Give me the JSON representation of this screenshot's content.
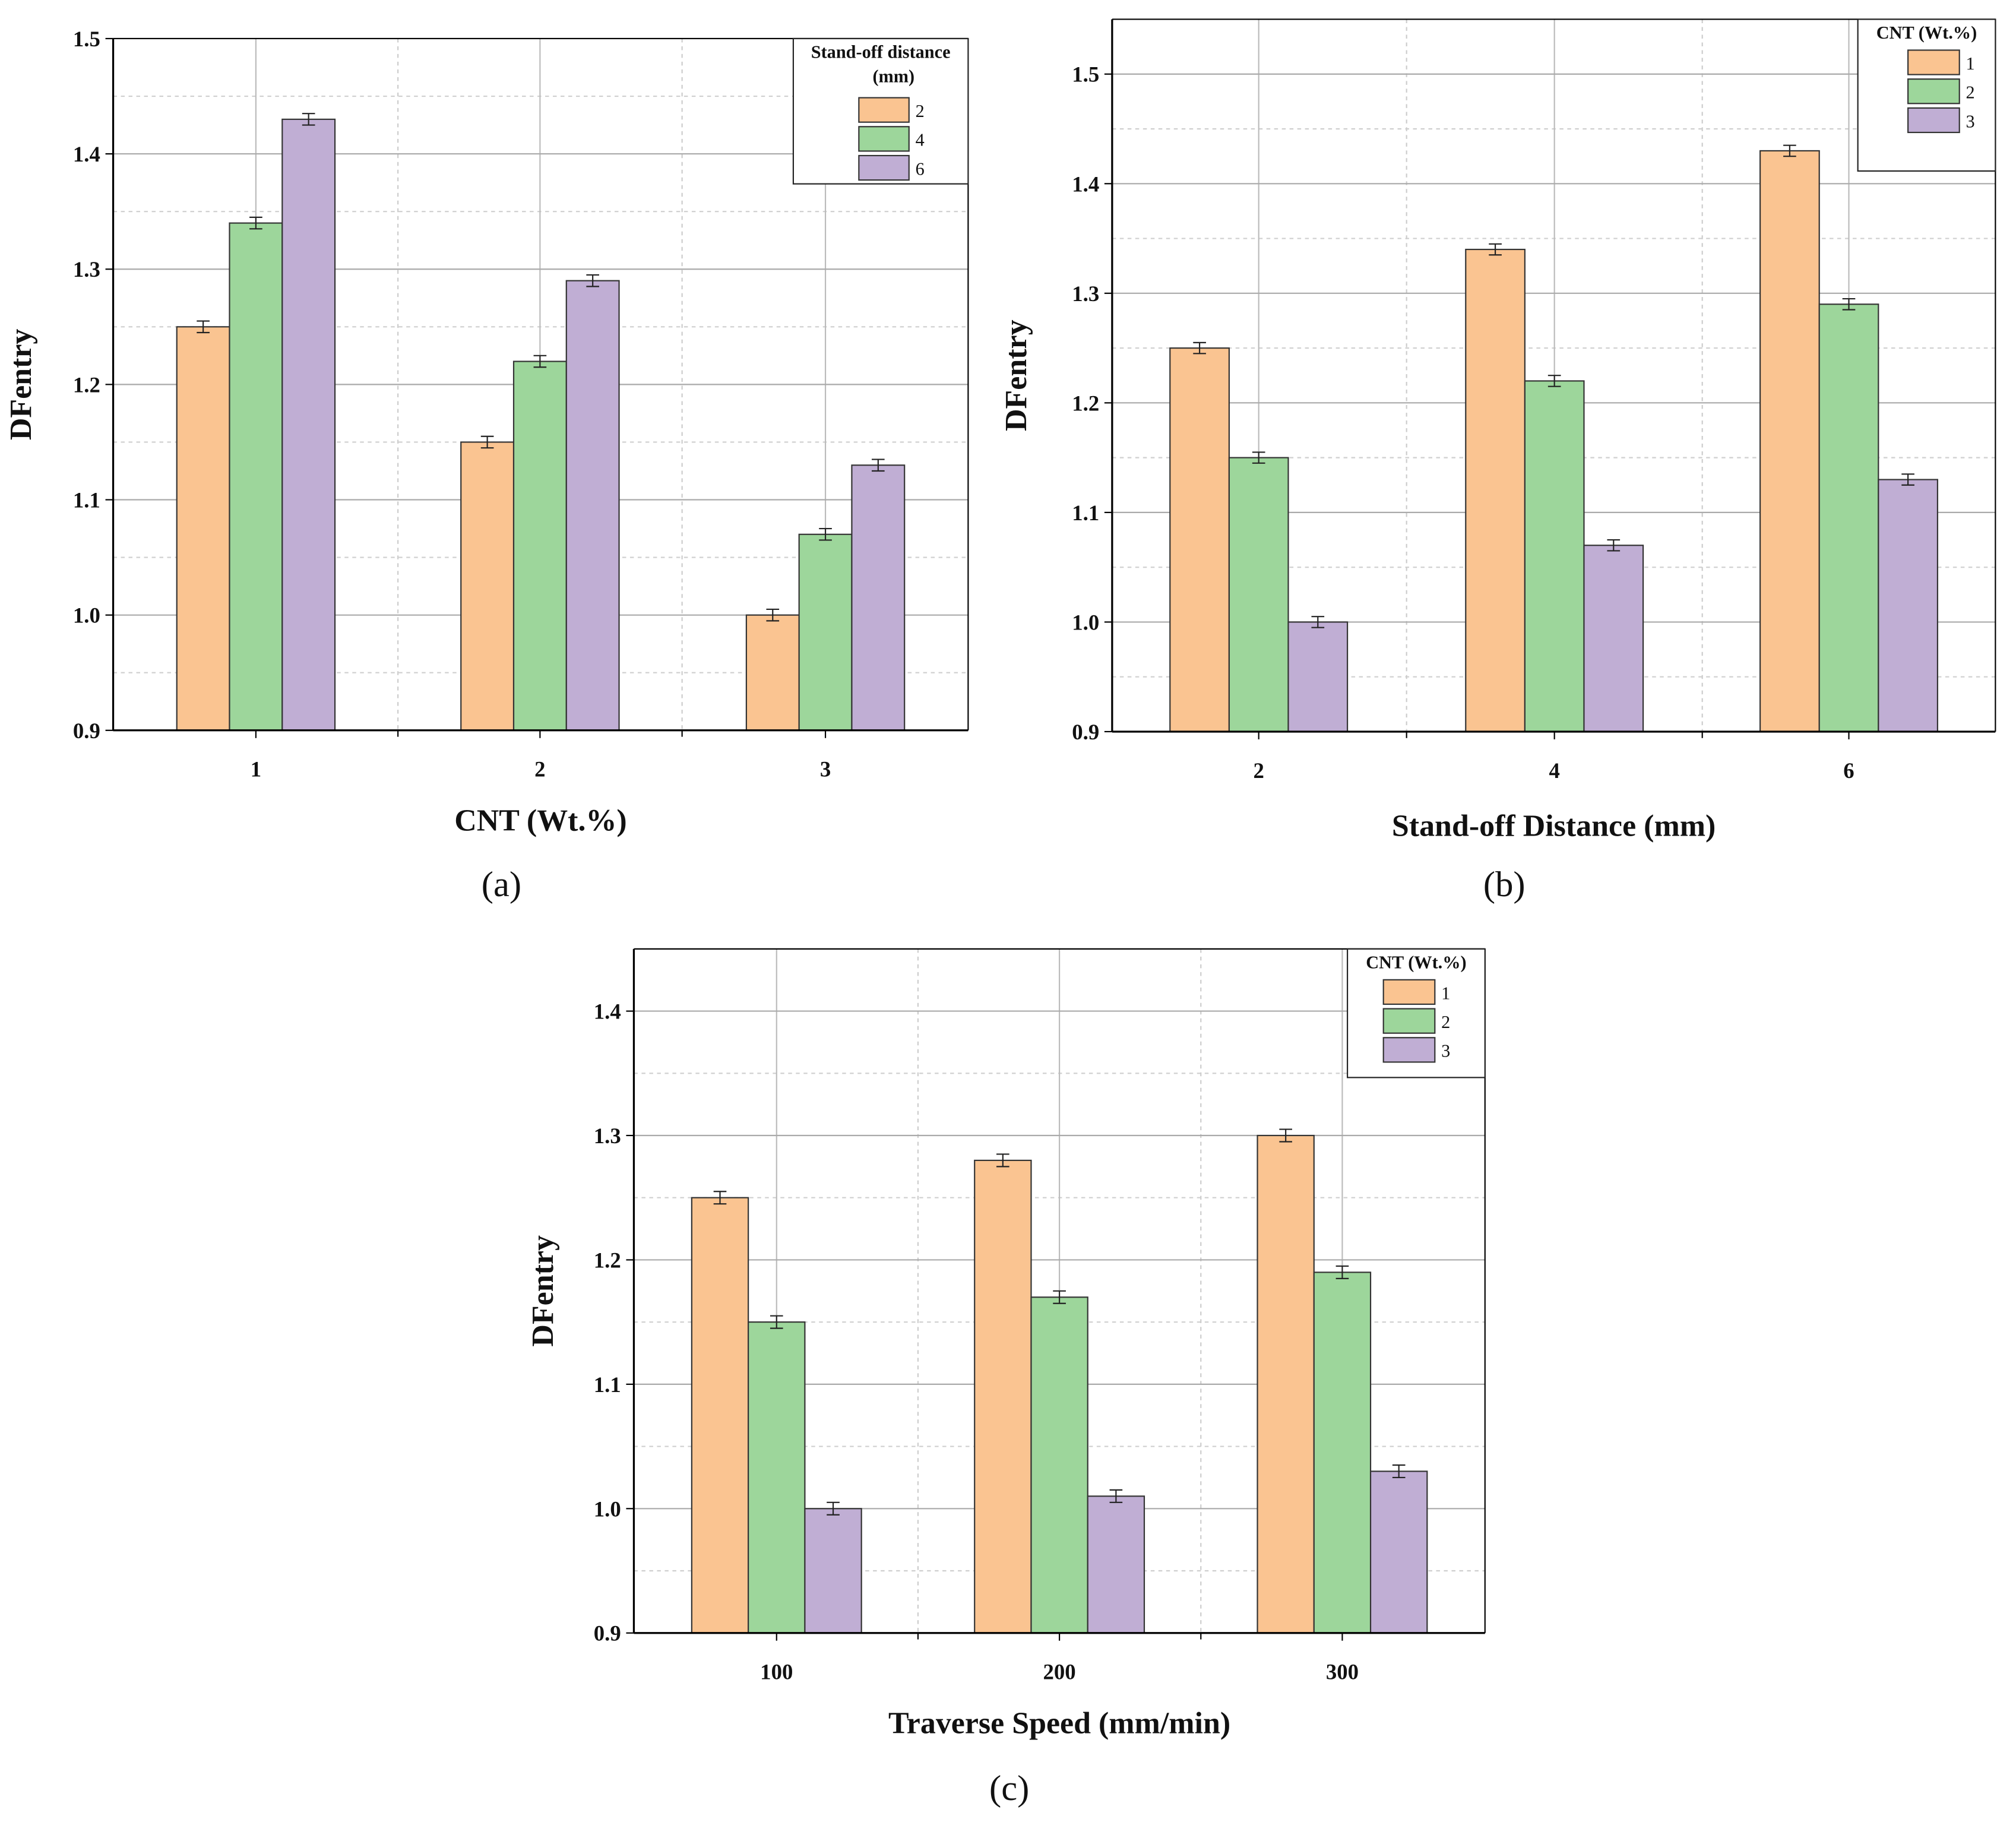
{
  "colors": {
    "series1": "#fac491",
    "series2": "#9dd69b",
    "series3": "#c0aed4"
  },
  "chart_data": [
    {
      "panel_label": "(a)",
      "type": "bar",
      "xlabel": "CNT (Wt.%)",
      "ylabel": "DFentry",
      "categories": [
        "1",
        "2",
        "3"
      ],
      "ylim": [
        0.9,
        1.5
      ],
      "yticks": [
        "0.9",
        "1.0",
        "1.1",
        "1.2",
        "1.3",
        "1.4",
        "1.5"
      ],
      "grid": true,
      "error_bars": true,
      "legend": {
        "title_line1": "Stand-off distance",
        "title_line2": "(mm)",
        "placement": "top-right"
      },
      "series": [
        {
          "name": "2",
          "values": [
            1.25,
            1.15,
            1.0
          ],
          "error": [
            0.005,
            0.005,
            0.005
          ]
        },
        {
          "name": "4",
          "values": [
            1.34,
            1.22,
            1.07
          ],
          "error": [
            0.005,
            0.005,
            0.005
          ]
        },
        {
          "name": "6",
          "values": [
            1.43,
            1.29,
            1.13
          ],
          "error": [
            0.005,
            0.005,
            0.005
          ]
        }
      ]
    },
    {
      "panel_label": "(b)",
      "type": "bar",
      "xlabel": "Stand-off Distance (mm)",
      "ylabel": "DFentry",
      "categories": [
        "2",
        "4",
        "6"
      ],
      "ylim": [
        0.9,
        1.55
      ],
      "yticks": [
        "0.9",
        "1.0",
        "1.1",
        "1.2",
        "1.3",
        "1.4",
        "1.5"
      ],
      "grid": true,
      "error_bars": true,
      "legend": {
        "title_line1": "CNT (Wt.%)",
        "title_line2": "",
        "placement": "top-right"
      },
      "series": [
        {
          "name": "1",
          "values": [
            1.25,
            1.34,
            1.43
          ],
          "error": [
            0.005,
            0.005,
            0.005
          ]
        },
        {
          "name": "2",
          "values": [
            1.15,
            1.22,
            1.29
          ],
          "error": [
            0.005,
            0.005,
            0.005
          ]
        },
        {
          "name": "3",
          "values": [
            1.0,
            1.07,
            1.13
          ],
          "error": [
            0.005,
            0.005,
            0.005
          ]
        }
      ]
    },
    {
      "panel_label": "(c)",
      "type": "bar",
      "xlabel": "Traverse Speed (mm/min)",
      "ylabel": "DFentry",
      "categories": [
        "100",
        "200",
        "300"
      ],
      "ylim": [
        0.9,
        1.45
      ],
      "yticks": [
        "0.9",
        "1.0",
        "1.1",
        "1.2",
        "1.3",
        "1.4"
      ],
      "grid": true,
      "error_bars": true,
      "legend": {
        "title_line1": "CNT (Wt.%)",
        "title_line2": "",
        "placement": "top-right"
      },
      "series": [
        {
          "name": "1",
          "values": [
            1.25,
            1.28,
            1.3
          ],
          "error": [
            0.005,
            0.005,
            0.005
          ]
        },
        {
          "name": "2",
          "values": [
            1.15,
            1.17,
            1.19
          ],
          "error": [
            0.005,
            0.005,
            0.005
          ]
        },
        {
          "name": "3",
          "values": [
            1.0,
            1.01,
            1.03
          ],
          "error": [
            0.005,
            0.005,
            0.005
          ]
        }
      ]
    }
  ]
}
